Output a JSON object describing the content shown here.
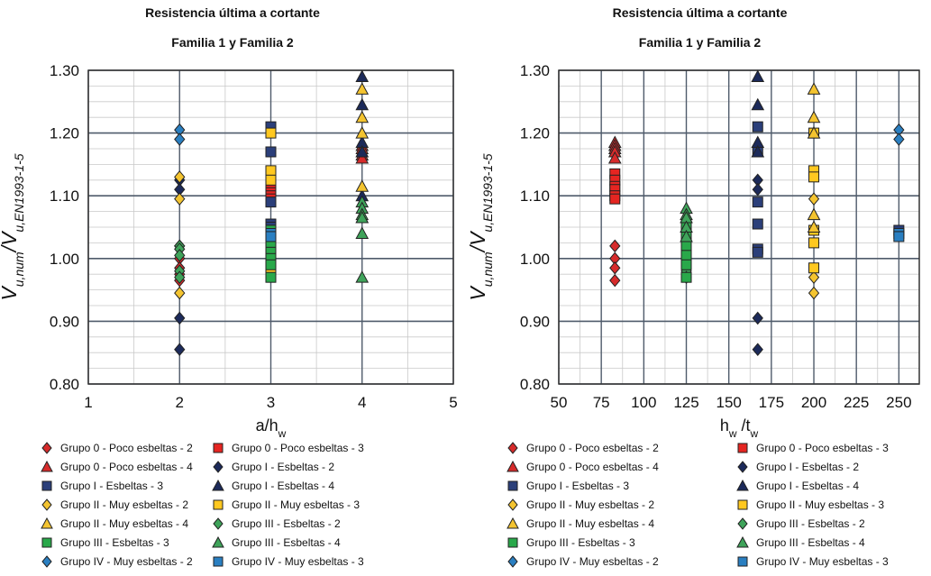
{
  "chart_data": [
    {
      "type": "scatter",
      "title": "Resistencia última a cortante",
      "subtitle": "Familia 1 y Familia 2",
      "ylabel_parts": [
        "V",
        "u,num",
        "/V",
        "u,EN1993-1-5"
      ],
      "xlabel_parts": [
        "a/h",
        "w"
      ],
      "xlim": [
        1,
        5
      ],
      "ylim": [
        0.8,
        1.3
      ],
      "xticks": [
        "1",
        "2",
        "3",
        "4",
        "5"
      ],
      "yticks": [
        "0.80",
        "0.90",
        "1.00",
        "1.10",
        "1.20",
        "1.30"
      ],
      "grid": true,
      "legend_position": "bottom",
      "series": [
        {
          "name": "Grupo 0 - Poco esbeltas - 2",
          "marker": "diamond",
          "color": "#d62b2b",
          "x": [
            2,
            2,
            2,
            2,
            2
          ],
          "y": [
            1.02,
            1.0,
            0.985,
            0.975,
            0.965
          ]
        },
        {
          "name": "Grupo 0 - Poco esbeltas - 3",
          "marker": "square",
          "color": "#e52521",
          "x": [
            3,
            3,
            3,
            3,
            3,
            3
          ],
          "y": [
            1.125,
            1.12,
            1.11,
            1.105,
            1.1,
            1.095
          ]
        },
        {
          "name": "Grupo 0 - Poco esbeltas - 4",
          "marker": "triangle",
          "color": "#d62b2b",
          "x": [
            4,
            4,
            4,
            4,
            4
          ],
          "y": [
            1.18,
            1.175,
            1.17,
            1.165,
            1.16
          ]
        },
        {
          "name": "Grupo I - Esbeltas - 2",
          "marker": "diamond",
          "color": "#1c2a5a",
          "x": [
            2,
            2,
            2,
            2
          ],
          "y": [
            1.125,
            1.11,
            0.905,
            0.855
          ]
        },
        {
          "name": "Grupo I - Esbeltas - 3",
          "marker": "square",
          "color": "#2b3f7a",
          "x": [
            3,
            3,
            3,
            3,
            3,
            3,
            3
          ],
          "y": [
            1.21,
            1.17,
            1.09,
            1.055,
            1.05,
            1.015,
            1.01
          ]
        },
        {
          "name": "Grupo I - Esbeltas - 4",
          "marker": "triangle",
          "color": "#1c2a5a",
          "x": [
            4,
            4,
            4,
            4,
            4
          ],
          "y": [
            1.29,
            1.245,
            1.185,
            1.17,
            1.1
          ]
        },
        {
          "name": "Grupo II - Muy esbeltas - 2",
          "marker": "diamond",
          "color": "#f4c430",
          "x": [
            2,
            2,
            2
          ],
          "y": [
            1.13,
            1.095,
            0.945
          ]
        },
        {
          "name": "Grupo II - Muy esbeltas - 3",
          "marker": "square",
          "color": "#ffc820",
          "x": [
            3,
            3,
            3,
            3
          ],
          "y": [
            1.2,
            1.14,
            1.125,
            0.985
          ]
        },
        {
          "name": "Grupo II - Muy esbeltas - 4",
          "marker": "triangle",
          "color": "#f4c430",
          "x": [
            4,
            4,
            4,
            4,
            4
          ],
          "y": [
            1.27,
            1.225,
            1.2,
            1.115,
            1.065
          ]
        },
        {
          "name": "Grupo III - Esbeltas - 2",
          "marker": "diamond",
          "color": "#3fa35a",
          "x": [
            2,
            2,
            2,
            2,
            2
          ],
          "y": [
            1.02,
            1.015,
            1.005,
            0.98,
            0.97
          ]
        },
        {
          "name": "Grupo III - Esbeltas - 3",
          "marker": "square",
          "color": "#29a84a",
          "x": [
            3,
            3,
            3,
            3,
            3,
            3
          ],
          "y": [
            1.045,
            1.025,
            1.01,
            1.0,
            0.99,
            0.97
          ]
        },
        {
          "name": "Grupo III - Esbeltas - 4",
          "marker": "triangle",
          "color": "#3fa35a",
          "x": [
            4,
            4,
            4,
            4,
            4,
            4
          ],
          "y": [
            1.09,
            1.08,
            1.07,
            1.065,
            1.04,
            0.97
          ]
        },
        {
          "name": "Grupo IV - Muy esbeltas - 2",
          "marker": "diamond",
          "color": "#2a7fc1",
          "x": [
            2,
            2
          ],
          "y": [
            1.205,
            1.19
          ]
        },
        {
          "name": "Grupo IV - Muy esbeltas - 3",
          "marker": "square",
          "color": "#2a7fc1",
          "x": [
            3,
            3
          ],
          "y": [
            1.04,
            1.035
          ]
        }
      ]
    },
    {
      "type": "scatter",
      "title": "Resistencia última a cortante",
      "subtitle": "Familia 1 y Familia 2",
      "ylabel_parts": [
        "V",
        "u,num",
        "/V",
        "u,EN1993-1-5"
      ],
      "xlabel_parts": [
        "h",
        "w",
        " /t",
        "w"
      ],
      "xlim": [
        50,
        262
      ],
      "ylim": [
        0.8,
        1.3
      ],
      "xticks": [
        "50",
        "75",
        "100",
        "125",
        "150",
        "175",
        "200",
        "225",
        "250"
      ],
      "yticks": [
        "0.80",
        "0.90",
        "1.00",
        "1.10",
        "1.20",
        "1.30"
      ],
      "grid": true,
      "legend_position": "bottom",
      "series": [
        {
          "name": "Grupo 0 - Poco esbeltas - 2",
          "marker": "diamond",
          "color": "#d62b2b",
          "x": [
            83,
            83,
            83,
            83
          ],
          "y": [
            1.02,
            1.0,
            0.985,
            0.965
          ]
        },
        {
          "name": "Grupo 0 - Poco esbeltas - 3",
          "marker": "square",
          "color": "#e52521",
          "x": [
            83,
            83,
            83,
            83,
            83,
            83
          ],
          "y": [
            1.135,
            1.125,
            1.115,
            1.11,
            1.1,
            1.095
          ]
        },
        {
          "name": "Grupo 0 - Poco esbeltas - 4",
          "marker": "triangle",
          "color": "#d62b2b",
          "x": [
            83,
            83,
            83,
            83,
            83
          ],
          "y": [
            1.185,
            1.18,
            1.175,
            1.17,
            1.16
          ]
        },
        {
          "name": "Grupo I - Esbeltas - 2",
          "marker": "diamond",
          "color": "#1c2a5a",
          "x": [
            167,
            167,
            167,
            167
          ],
          "y": [
            1.125,
            1.11,
            0.905,
            0.855
          ]
        },
        {
          "name": "Grupo I - Esbeltas - 3",
          "marker": "square",
          "color": "#2b3f7a",
          "x": [
            167,
            167,
            167,
            167,
            167,
            167,
            250
          ],
          "y": [
            1.21,
            1.17,
            1.09,
            1.055,
            1.015,
            1.01,
            1.045
          ]
        },
        {
          "name": "Grupo I - Esbeltas - 4",
          "marker": "triangle",
          "color": "#1c2a5a",
          "x": [
            167,
            167,
            167,
            167
          ],
          "y": [
            1.29,
            1.245,
            1.185,
            1.17
          ]
        },
        {
          "name": "Grupo II - Muy esbeltas - 2",
          "marker": "diamond",
          "color": "#f4c430",
          "x": [
            200,
            200,
            200
          ],
          "y": [
            1.095,
            0.97,
            0.945
          ]
        },
        {
          "name": "Grupo II - Muy esbeltas - 3",
          "marker": "square",
          "color": "#ffc820",
          "x": [
            200,
            200,
            200,
            200,
            200,
            200
          ],
          "y": [
            1.2,
            1.14,
            1.13,
            1.045,
            1.025,
            0.985
          ]
        },
        {
          "name": "Grupo II - Muy esbeltas - 4",
          "marker": "triangle",
          "color": "#f4c430",
          "x": [
            200,
            200,
            200,
            200,
            200
          ],
          "y": [
            1.27,
            1.225,
            1.2,
            1.07,
            1.05
          ]
        },
        {
          "name": "Grupo III - Esbeltas - 2",
          "marker": "diamond",
          "color": "#3fa35a",
          "x": [
            125,
            125,
            125,
            125
          ],
          "y": [
            1.06,
            1.04,
            0.98,
            0.97
          ]
        },
        {
          "name": "Grupo III - Esbeltas - 3",
          "marker": "square",
          "color": "#29a84a",
          "x": [
            125,
            125,
            125,
            125,
            125,
            125
          ],
          "y": [
            1.05,
            1.035,
            1.02,
            1.005,
            0.99,
            0.97
          ]
        },
        {
          "name": "Grupo III - Esbeltas - 4",
          "marker": "triangle",
          "color": "#3fa35a",
          "x": [
            125,
            125,
            125,
            125,
            125
          ],
          "y": [
            1.08,
            1.07,
            1.065,
            1.05,
            1.035
          ]
        },
        {
          "name": "Grupo IV - Muy esbeltas - 2",
          "marker": "diamond",
          "color": "#2a7fc1",
          "x": [
            250,
            250
          ],
          "y": [
            1.205,
            1.19
          ]
        },
        {
          "name": "Grupo IV - Muy esbeltas - 3",
          "marker": "square",
          "color": "#2a7fc1",
          "x": [
            250,
            250
          ],
          "y": [
            1.04,
            1.035
          ]
        }
      ]
    }
  ]
}
